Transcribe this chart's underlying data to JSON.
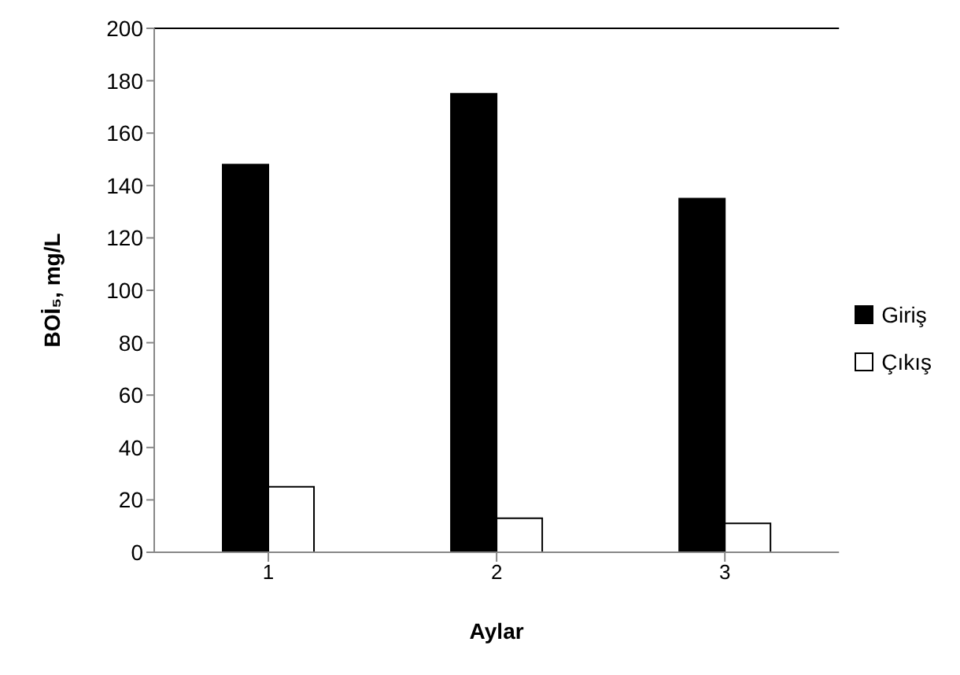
{
  "chart_data": {
    "type": "bar",
    "xlabel": "Aylar",
    "ylabel": "BOİ₅, mg/L",
    "categories": [
      "1",
      "2",
      "3"
    ],
    "series": [
      {
        "name": "Giriş",
        "color": "#000000",
        "values": [
          148,
          175,
          135
        ]
      },
      {
        "name": "Çıkış",
        "color": "#ffffff",
        "values": [
          25,
          13,
          11
        ]
      }
    ],
    "ylim": [
      0,
      200
    ],
    "yticks": [
      0,
      20,
      40,
      60,
      80,
      100,
      120,
      140,
      160,
      180,
      200
    ],
    "grid": false,
    "legend": "right"
  }
}
